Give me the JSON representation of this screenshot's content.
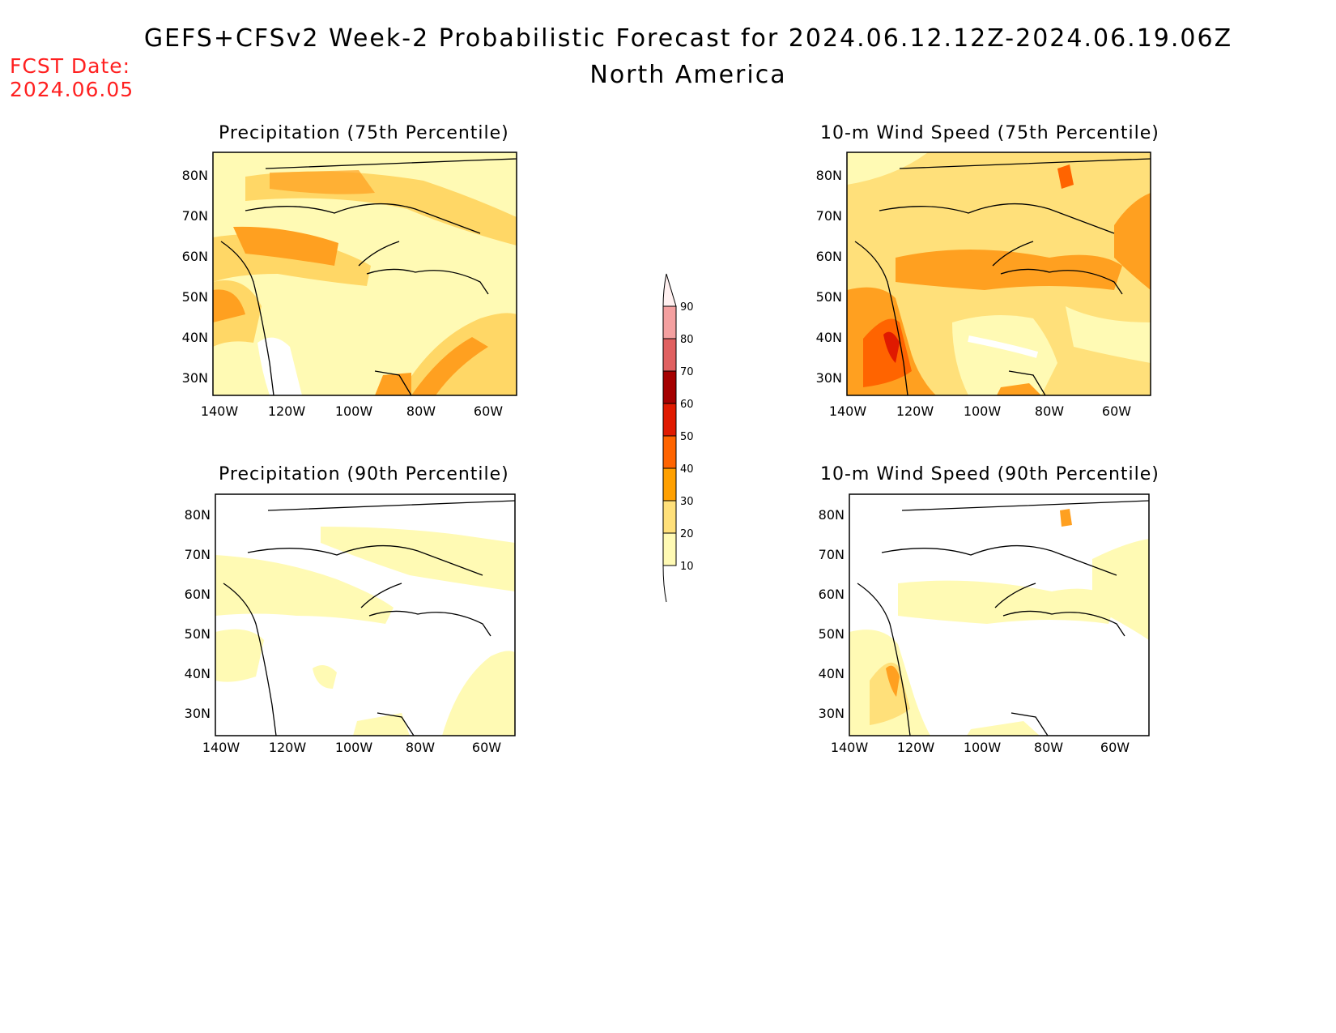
{
  "header": {
    "title": "GEFS+CFSv2 Week-2 Probabilistic Forecast for 2024.06.12.12Z-2024.06.19.06Z",
    "subtitle": "North America",
    "fcst_label": "FCST Date:",
    "fcst_date": "2024.06.05"
  },
  "axes": {
    "lat_labels": [
      "80N",
      "70N",
      "60N",
      "50N",
      "40N",
      "30N"
    ],
    "lon_labels": [
      "140W",
      "120W",
      "100W",
      "80W",
      "60W"
    ],
    "lat_range": [
      25,
      85
    ],
    "lon_range": [
      -140,
      -50
    ]
  },
  "panels": [
    {
      "title": "Precipitation (75th Percentile)",
      "variable": "precipitation",
      "percentile": 75
    },
    {
      "title": "10-m Wind Speed (75th Percentile)",
      "variable": "10-m wind speed",
      "percentile": 75
    },
    {
      "title": "Precipitation (90th Percentile)",
      "variable": "precipitation",
      "percentile": 90
    },
    {
      "title": "10-m Wind Speed (90th Percentile)",
      "variable": "10-m wind speed",
      "percentile": 90
    }
  ],
  "colorbar": {
    "labels": [
      "90",
      "80",
      "70",
      "60",
      "50",
      "40",
      "30",
      "20",
      "10"
    ],
    "colors": [
      "#fce4e4",
      "#f4a0a0",
      "#e06060",
      "#a50000",
      "#e01a00",
      "#ff6400",
      "#ffa000",
      "#ffe07a",
      "#fffab4"
    ]
  }
}
